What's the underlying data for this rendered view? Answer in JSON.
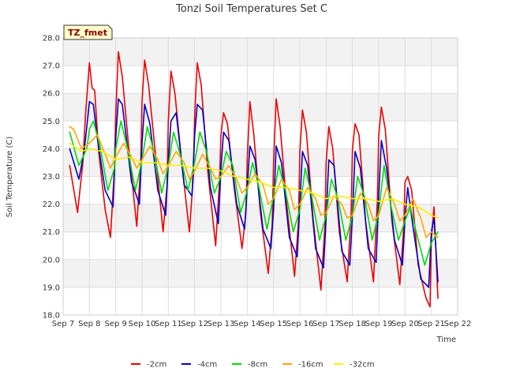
{
  "chart_data": {
    "type": "line",
    "title": "Tonzi Soil Temperatures Set C",
    "xlabel": "Time",
    "ylabel": "Soil Temperature (C)",
    "ylim": [
      18.0,
      28.0
    ],
    "yticks": [
      "18.0",
      "19.0",
      "20.0",
      "21.0",
      "22.0",
      "23.0",
      "24.0",
      "25.0",
      "26.0",
      "27.0",
      "28.0"
    ],
    "xlim": [
      7,
      22
    ],
    "xticks": [
      {
        "v": 7,
        "label": "Sep 7"
      },
      {
        "v": 8,
        "label": "Sep 8"
      },
      {
        "v": 9,
        "label": "Sep 9"
      },
      {
        "v": 10,
        "label": "Sep 10"
      },
      {
        "v": 11,
        "label": "Sep 11"
      },
      {
        "v": 12,
        "label": "Sep 12"
      },
      {
        "v": 13,
        "label": "Sep 13"
      },
      {
        "v": 14,
        "label": "Sep 14"
      },
      {
        "v": 15,
        "label": "Sep 15"
      },
      {
        "v": 16,
        "label": "Sep 16"
      },
      {
        "v": 17,
        "label": "Sep 17"
      },
      {
        "v": 18,
        "label": "Sep 18"
      },
      {
        "v": 19,
        "label": "Sep 19"
      },
      {
        "v": 20,
        "label": "Sep 20"
      },
      {
        "v": 21,
        "label": "Sep 21"
      },
      {
        "v": 22,
        "label": "Sep 22"
      }
    ],
    "grid": true,
    "legend": "bottom",
    "badge": "TZ_fmet",
    "series": [
      {
        "name": "-2cm",
        "color": "#ee0000",
        "x": [
          7.25,
          7.55,
          7.75,
          7.85,
          8.0,
          8.1,
          8.2,
          8.35,
          8.6,
          8.8,
          8.95,
          9.0,
          9.1,
          9.25,
          9.5,
          9.8,
          9.95,
          10.0,
          10.1,
          10.25,
          10.5,
          10.8,
          10.95,
          11.0,
          11.1,
          11.25,
          11.5,
          11.8,
          11.95,
          12.0,
          12.1,
          12.25,
          12.5,
          12.8,
          12.95,
          13.0,
          13.1,
          13.25,
          13.5,
          13.8,
          13.95,
          14.0,
          14.1,
          14.25,
          14.5,
          14.8,
          14.95,
          15.0,
          15.1,
          15.25,
          15.5,
          15.8,
          15.95,
          16.0,
          16.1,
          16.25,
          16.5,
          16.8,
          16.95,
          17.0,
          17.1,
          17.25,
          17.5,
          17.8,
          17.95,
          18.0,
          18.1,
          18.25,
          18.5,
          18.8,
          18.95,
          19.0,
          19.1,
          19.25,
          19.5,
          19.8,
          19.95,
          20.0,
          20.1,
          20.25,
          20.5,
          20.8,
          20.95,
          21.0,
          21.1,
          21.25
        ],
        "y": [
          23.4,
          21.7,
          23.5,
          25.2,
          27.1,
          26.2,
          26.1,
          23.9,
          21.8,
          20.8,
          23.3,
          25.3,
          27.5,
          26.6,
          24.0,
          21.2,
          23.4,
          25.7,
          27.2,
          26.3,
          23.9,
          21.0,
          22.7,
          25.0,
          26.8,
          26.0,
          23.6,
          21.0,
          23.0,
          25.2,
          27.1,
          26.3,
          23.2,
          20.5,
          22.9,
          24.5,
          25.3,
          24.9,
          22.6,
          20.4,
          21.7,
          23.6,
          25.7,
          24.5,
          21.7,
          19.5,
          21.3,
          23.5,
          25.8,
          24.8,
          22.0,
          19.4,
          21.4,
          23.9,
          25.4,
          24.6,
          21.5,
          18.9,
          21.2,
          23.5,
          24.8,
          24.0,
          21.0,
          19.2,
          21.7,
          24.0,
          24.9,
          24.5,
          21.4,
          19.2,
          22.2,
          24.5,
          25.5,
          24.7,
          21.4,
          19.1,
          21.2,
          22.8,
          23.0,
          22.5,
          19.8,
          18.6,
          18.3,
          20.7,
          21.9,
          18.6
        ]
      },
      {
        "name": "-4cm",
        "color": "#0000cc",
        "x": [
          7.25,
          7.6,
          7.8,
          8.0,
          8.15,
          8.3,
          8.6,
          8.9,
          9.0,
          9.1,
          9.25,
          9.6,
          9.9,
          10.0,
          10.1,
          10.3,
          10.6,
          10.9,
          11.0,
          11.1,
          11.3,
          11.6,
          11.9,
          12.0,
          12.1,
          12.3,
          12.6,
          12.9,
          13.0,
          13.1,
          13.3,
          13.6,
          13.9,
          14.0,
          14.1,
          14.3,
          14.6,
          14.9,
          15.0,
          15.1,
          15.3,
          15.6,
          15.9,
          16.0,
          16.1,
          16.3,
          16.6,
          16.9,
          17.0,
          17.1,
          17.3,
          17.6,
          17.9,
          18.0,
          18.1,
          18.3,
          18.6,
          18.9,
          19.0,
          19.1,
          19.3,
          19.6,
          19.9,
          20.0,
          20.1,
          20.3,
          20.6,
          20.9,
          21.0,
          21.1,
          21.25
        ],
        "y": [
          24.0,
          22.9,
          23.9,
          25.7,
          25.6,
          24.4,
          22.5,
          21.9,
          24.4,
          25.8,
          25.6,
          22.8,
          22.0,
          24.2,
          25.6,
          24.9,
          22.5,
          21.6,
          23.5,
          25.0,
          25.3,
          22.7,
          22.3,
          24.5,
          25.6,
          25.4,
          22.6,
          21.3,
          23.3,
          24.6,
          24.3,
          22.0,
          21.1,
          22.6,
          24.1,
          23.6,
          21.1,
          20.4,
          21.8,
          24.1,
          23.5,
          20.8,
          20.1,
          22.0,
          23.9,
          23.4,
          20.4,
          19.7,
          21.5,
          23.6,
          23.4,
          20.3,
          19.8,
          21.6,
          23.9,
          23.3,
          20.4,
          19.9,
          22.3,
          24.3,
          23.3,
          20.7,
          19.8,
          21.5,
          22.6,
          21.2,
          19.3,
          19.0,
          21.0,
          21.5,
          19.2
        ]
      },
      {
        "name": "-8cm",
        "color": "#00dd00",
        "x": [
          7.25,
          7.6,
          7.9,
          8.0,
          8.15,
          8.4,
          8.7,
          8.95,
          9.0,
          9.2,
          9.45,
          9.75,
          10.0,
          10.2,
          10.45,
          10.75,
          11.0,
          11.2,
          11.45,
          11.75,
          12.0,
          12.2,
          12.45,
          12.75,
          13.0,
          13.2,
          13.45,
          13.75,
          14.0,
          14.2,
          14.45,
          14.75,
          15.0,
          15.2,
          15.45,
          15.75,
          16.0,
          16.2,
          16.45,
          16.75,
          17.0,
          17.2,
          17.45,
          17.75,
          18.0,
          18.2,
          18.45,
          18.75,
          19.0,
          19.2,
          19.45,
          19.75,
          20.0,
          20.2,
          20.45,
          20.75,
          21.0,
          21.25
        ],
        "y": [
          24.6,
          23.4,
          24.0,
          24.7,
          25.0,
          24.1,
          22.5,
          23.3,
          24.0,
          25.0,
          24.0,
          22.5,
          23.6,
          24.8,
          23.9,
          22.4,
          23.4,
          24.6,
          23.8,
          22.5,
          23.5,
          24.6,
          23.9,
          22.4,
          23.0,
          23.9,
          23.4,
          21.7,
          22.5,
          23.5,
          22.6,
          21.1,
          22.3,
          23.4,
          22.5,
          21.0,
          21.8,
          23.3,
          22.3,
          20.7,
          21.6,
          22.9,
          22.2,
          20.7,
          21.6,
          23.0,
          22.3,
          20.7,
          21.7,
          23.4,
          22.0,
          20.7,
          21.4,
          21.9,
          20.9,
          19.8,
          20.6,
          21.0
        ]
      },
      {
        "name": "-16cm",
        "color": "#ffa500",
        "x": [
          7.25,
          7.4,
          7.7,
          8.0,
          8.3,
          8.6,
          8.8,
          9.0,
          9.3,
          9.6,
          9.8,
          10.0,
          10.3,
          10.6,
          10.8,
          11.0,
          11.3,
          11.6,
          11.8,
          12.0,
          12.3,
          12.6,
          12.8,
          13.0,
          13.3,
          13.6,
          13.8,
          14.0,
          14.3,
          14.6,
          14.8,
          15.0,
          15.3,
          15.6,
          15.8,
          16.0,
          16.3,
          16.6,
          16.8,
          17.0,
          17.3,
          17.6,
          17.8,
          18.0,
          18.3,
          18.6,
          18.8,
          19.0,
          19.3,
          19.6,
          19.8,
          20.0,
          20.3,
          20.6,
          20.8,
          21.0,
          21.25
        ],
        "y": [
          24.8,
          24.7,
          24.0,
          24.2,
          24.5,
          23.8,
          23.3,
          23.7,
          24.2,
          23.7,
          23.3,
          23.6,
          24.1,
          23.6,
          23.1,
          23.4,
          23.9,
          23.5,
          22.9,
          23.2,
          23.8,
          23.3,
          22.9,
          23.0,
          23.4,
          22.9,
          22.4,
          22.6,
          23.1,
          22.7,
          22.0,
          22.2,
          22.9,
          22.5,
          21.8,
          22.0,
          22.6,
          22.2,
          21.6,
          21.7,
          22.3,
          22.0,
          21.5,
          21.6,
          22.4,
          22.0,
          21.4,
          21.6,
          22.6,
          22.0,
          21.4,
          21.6,
          22.2,
          21.5,
          20.8,
          21.0,
          20.8
        ]
      },
      {
        "name": "-32cm",
        "color": "#ffee00",
        "x": [
          7.25,
          7.7,
          8.0,
          8.5,
          9.0,
          9.5,
          10.0,
          10.5,
          11.0,
          11.5,
          12.0,
          12.5,
          13.0,
          13.5,
          14.0,
          14.5,
          15.0,
          15.5,
          16.0,
          16.5,
          17.0,
          17.5,
          18.0,
          18.5,
          19.0,
          19.5,
          20.0,
          20.5,
          21.0,
          21.25
        ],
        "y": [
          24.2,
          23.9,
          24.0,
          23.9,
          23.6,
          23.7,
          23.5,
          23.5,
          23.4,
          23.4,
          23.3,
          23.3,
          23.2,
          23.0,
          22.9,
          22.8,
          22.6,
          22.6,
          22.5,
          22.4,
          22.2,
          22.3,
          22.2,
          22.2,
          22.1,
          22.2,
          22.0,
          21.9,
          21.6,
          21.5
        ]
      }
    ]
  }
}
